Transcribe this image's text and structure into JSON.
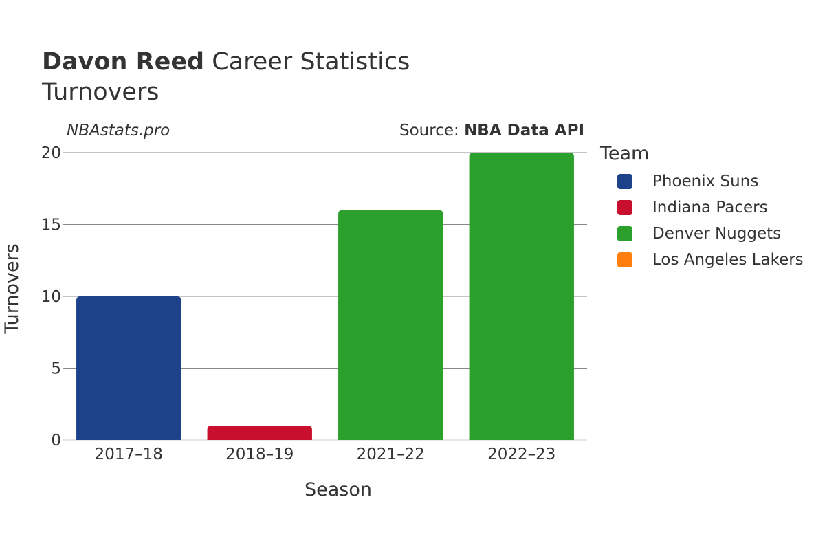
{
  "header": {
    "title_bold": "Davon Reed",
    "title_rest": " Career Statistics",
    "subtitle": "Turnovers",
    "watermark": "NBAstats.pro",
    "source_prefix": "Source: ",
    "source_name": "NBA Data API"
  },
  "legend": {
    "title": "Team",
    "items": [
      {
        "label": "Phoenix Suns",
        "color": "#1d428a"
      },
      {
        "label": "Indiana Pacers",
        "color": "#c8102e"
      },
      {
        "label": "Denver Nuggets",
        "color": "#2ca02c"
      },
      {
        "label": "Los Angeles Lakers",
        "color": "#ff7f0e"
      }
    ]
  },
  "chart_data": {
    "type": "bar",
    "categories": [
      "2017–18",
      "2018–19",
      "2021–22",
      "2022–23"
    ],
    "values": [
      10,
      1,
      16,
      20
    ],
    "bar_teams": [
      "Phoenix Suns",
      "Indiana Pacers",
      "Denver Nuggets",
      "Denver Nuggets"
    ],
    "bar_colors": [
      "#1d428a",
      "#c8102e",
      "#2ca02c",
      "#2ca02c"
    ],
    "xlabel": "Season",
    "ylabel": "Turnovers",
    "ylim": [
      0,
      20
    ],
    "yticks": [
      0,
      5,
      10,
      15,
      20
    ],
    "grid": true,
    "legend_position": "right"
  }
}
